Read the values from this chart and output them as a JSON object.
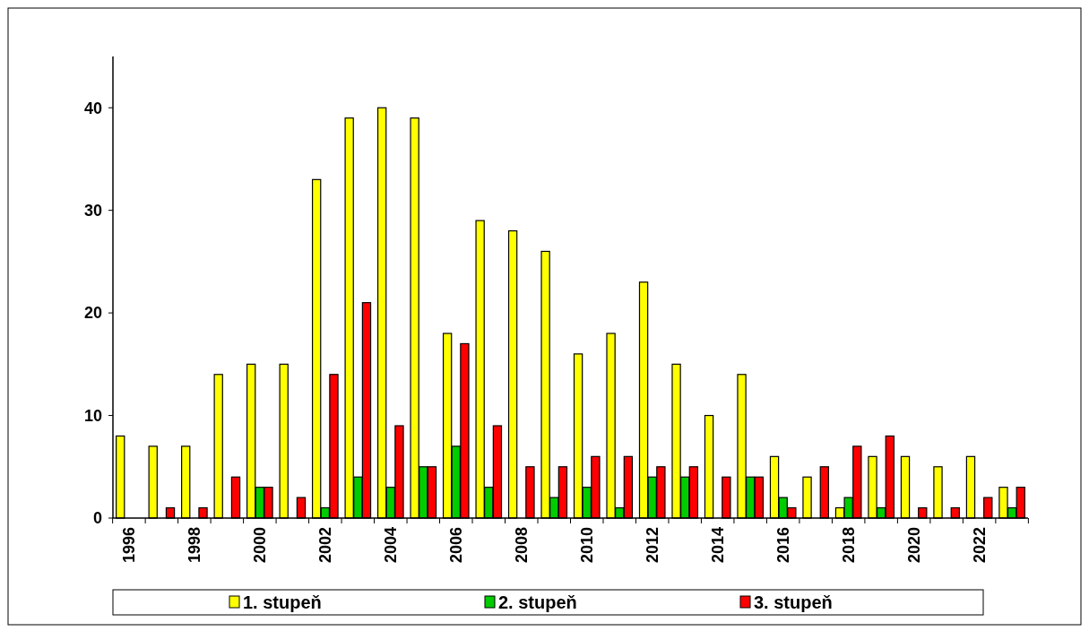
{
  "chart_data": {
    "type": "bar",
    "categories": [
      "1996",
      null,
      "1998",
      null,
      "2000",
      null,
      "2002",
      null,
      "2004",
      null,
      "2006",
      null,
      "2008",
      null,
      "2010",
      null,
      "2012",
      null,
      "2014",
      null,
      "2016",
      null,
      "2018",
      null,
      "2020",
      null,
      "2022",
      null
    ],
    "series": [
      {
        "name": "1. stupeň",
        "color": "#ffff00",
        "values": [
          8,
          7,
          7,
          14,
          15,
          15,
          33,
          39,
          40,
          39,
          18,
          29,
          28,
          26,
          16,
          18,
          23,
          15,
          10,
          14,
          6,
          4,
          1,
          6,
          6,
          5,
          6,
          3
        ]
      },
      {
        "name": "2. stupeň",
        "color": "#00cc00",
        "values": [
          0,
          0,
          0,
          0,
          3,
          0,
          1,
          4,
          3,
          5,
          7,
          3,
          0,
          2,
          3,
          1,
          4,
          4,
          0,
          4,
          2,
          0,
          2,
          1,
          0,
          0,
          0,
          1
        ]
      },
      {
        "name": "3. stupeň",
        "color": "#ff0000",
        "values": [
          0,
          1,
          1,
          4,
          3,
          2,
          14,
          21,
          9,
          5,
          17,
          9,
          5,
          5,
          6,
          6,
          5,
          5,
          4,
          4,
          1,
          5,
          7,
          8,
          1,
          1,
          2,
          3
        ]
      }
    ],
    "ylim": [
      0,
      45
    ],
    "yticks": [
      0,
      10,
      20,
      30,
      40
    ],
    "grid": false,
    "legend": "bottom"
  }
}
